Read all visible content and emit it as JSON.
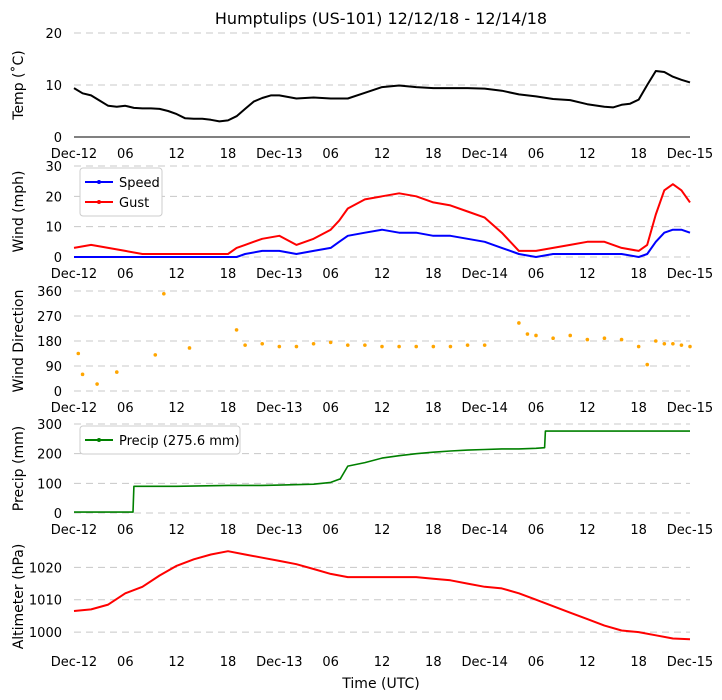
{
  "title": "Humptulips (US-101) 12/12/18 - 12/14/18",
  "xlabel": "Time (UTC)",
  "x_ticks": [
    "Dec-12",
    "06",
    "12",
    "18",
    "Dec-13",
    "06",
    "12",
    "18",
    "Dec-14",
    "06",
    "12",
    "18",
    "Dec-15"
  ],
  "chart_data": [
    {
      "type": "line",
      "ylabel": "Temp (˚C)",
      "ylim": [
        0,
        20
      ],
      "yticks": [
        0,
        10,
        20
      ],
      "grid": "y",
      "color": "#000000",
      "x_hours": [
        0,
        1,
        2,
        3,
        4,
        5,
        6,
        7,
        8,
        9,
        10,
        11,
        12,
        13,
        14,
        15,
        16,
        17,
        18,
        19,
        20,
        21,
        22,
        23,
        24,
        26,
        28,
        30,
        32,
        34,
        36,
        38,
        40,
        42,
        44,
        46,
        48,
        50,
        52,
        54,
        56,
        58,
        60,
        62,
        63,
        64,
        65,
        66,
        67,
        68,
        69,
        70,
        71,
        72
      ],
      "series": [
        {
          "name": "Temp",
          "values": [
            9.4,
            8.4,
            8.0,
            7.0,
            6.0,
            5.8,
            6.0,
            5.6,
            5.5,
            5.5,
            5.4,
            5.0,
            4.4,
            3.6,
            3.5,
            3.5,
            3.3,
            3.0,
            3.2,
            4.0,
            5.4,
            6.8,
            7.5,
            8.0,
            8.0,
            7.4,
            7.6,
            7.4,
            7.4,
            8.5,
            9.6,
            9.9,
            9.6,
            9.4,
            9.4,
            9.4,
            9.3,
            8.9,
            8.2,
            7.8,
            7.3,
            7.1,
            6.3,
            5.8,
            5.7,
            6.2,
            6.4,
            7.2,
            10.0,
            12.7,
            12.5,
            11.6,
            11.0,
            10.5
          ]
        }
      ]
    },
    {
      "type": "line",
      "ylabel": "Wind (mph)",
      "ylim": [
        0,
        30
      ],
      "yticks": [
        0,
        10,
        20,
        30
      ],
      "grid": "y",
      "legend": "top-left",
      "x_hours": [
        0,
        2,
        4,
        6,
        8,
        10,
        12,
        14,
        16,
        18,
        19,
        20,
        22,
        24,
        26,
        28,
        30,
        31,
        32,
        34,
        36,
        38,
        40,
        42,
        44,
        46,
        48,
        50,
        52,
        54,
        56,
        58,
        60,
        62,
        64,
        66,
        67,
        68,
        69,
        70,
        71,
        72
      ],
      "series": [
        {
          "name": "Speed",
          "color": "#0000ff",
          "values": [
            0,
            0,
            0,
            0,
            0,
            0,
            0,
            0,
            0,
            0,
            0,
            1,
            2,
            2,
            1,
            2,
            3,
            5,
            7,
            8,
            9,
            8,
            8,
            7,
            7,
            6,
            5,
            3,
            1,
            0,
            1,
            1,
            1,
            1,
            1,
            0,
            1,
            5,
            8,
            9,
            9,
            8
          ]
        },
        {
          "name": "Gust",
          "color": "#ff0000",
          "values": [
            3,
            4,
            3,
            2,
            1,
            1,
            1,
            1,
            1,
            1,
            3,
            4,
            6,
            7,
            4,
            6,
            9,
            12,
            16,
            19,
            20,
            21,
            20,
            18,
            17,
            15,
            13,
            8,
            2,
            2,
            3,
            4,
            5,
            5,
            3,
            2,
            4,
            14,
            22,
            24,
            22,
            18
          ]
        }
      ]
    },
    {
      "type": "scatter",
      "ylabel": "Wind Direction",
      "ylim": [
        0,
        360
      ],
      "yticks": [
        0,
        90,
        180,
        270,
        360
      ],
      "grid": "y",
      "color": "#ffa500",
      "x_hours": [
        0.5,
        1,
        2.7,
        5,
        9.5,
        10.5,
        13.5,
        19,
        20,
        22,
        24,
        26,
        28,
        30,
        32,
        34,
        36,
        38,
        40,
        42,
        44,
        46,
        48,
        52,
        53,
        54,
        56,
        58,
        60,
        62,
        64,
        66,
        67,
        68,
        69,
        70,
        71,
        72
      ],
      "series": [
        {
          "name": "Direction",
          "values": [
            135,
            60,
            25,
            68,
            130,
            350,
            155,
            220,
            165,
            170,
            160,
            160,
            170,
            175,
            165,
            165,
            160,
            160,
            160,
            160,
            160,
            165,
            165,
            245,
            205,
            200,
            190,
            200,
            185,
            190,
            185,
            160,
            95,
            180,
            170,
            170,
            165,
            160
          ]
        }
      ]
    },
    {
      "type": "line",
      "ylabel": "Precip (mm)",
      "ylim": [
        0,
        300
      ],
      "yticks": [
        0,
        100,
        200,
        300
      ],
      "grid": "y",
      "legend": "top-left",
      "color": "#008000",
      "x_hours": [
        0,
        6.9,
        7,
        12,
        18,
        22,
        24,
        28,
        30,
        31,
        31.1,
        32,
        34,
        36,
        38,
        40,
        42,
        44,
        46,
        48,
        50,
        52,
        54,
        55,
        55.1,
        58,
        60,
        64,
        68,
        72
      ],
      "series": [
        {
          "name": "Precip (275.6 mm)",
          "values": [
            3,
            3,
            90,
            90,
            93,
            93,
            94,
            97,
            103,
            114,
            114,
            158,
            170,
            185,
            193,
            200,
            205,
            209,
            212,
            214,
            216,
            216,
            218,
            220,
            276,
            276,
            276,
            276,
            276,
            276
          ]
        }
      ]
    },
    {
      "type": "line",
      "ylabel": "Altimeter (hPa)",
      "ylim": [
        996,
        1026
      ],
      "yticks": [
        1000,
        1010,
        1020
      ],
      "grid": "y",
      "color": "#ff0000",
      "x_hours": [
        0,
        2,
        4,
        6,
        8,
        10,
        12,
        14,
        16,
        18,
        20,
        22,
        24,
        26,
        28,
        30,
        32,
        34,
        36,
        38,
        40,
        42,
        44,
        46,
        48,
        50,
        52,
        54,
        56,
        58,
        60,
        62,
        64,
        66,
        68,
        70,
        72
      ],
      "series": [
        {
          "name": "Altimeter",
          "values": [
            1006.5,
            1007,
            1008.5,
            1012,
            1014,
            1017.5,
            1020.5,
            1022.5,
            1024,
            1025,
            1024,
            1023,
            1022,
            1021,
            1019.5,
            1018,
            1017,
            1017,
            1017,
            1017,
            1017,
            1016.5,
            1016,
            1015,
            1014,
            1013.5,
            1012,
            1010,
            1008,
            1006,
            1004,
            1002,
            1000.5,
            1000,
            999,
            998,
            997.8
          ]
        }
      ]
    }
  ]
}
